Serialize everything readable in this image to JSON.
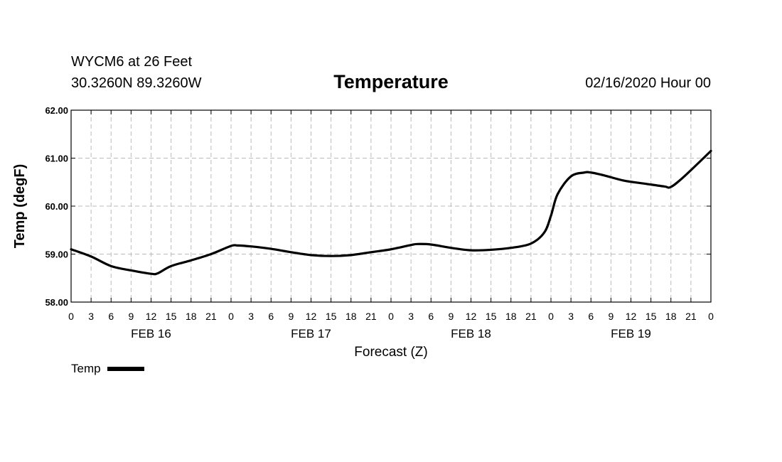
{
  "header": {
    "station": "WYCM6 at 26 Feet",
    "coords": "30.3260N 89.3260W",
    "title": "Temperature",
    "datetime": "02/16/2020 Hour 00"
  },
  "legend": {
    "label": "Temp",
    "position": "bottom-left",
    "color": "#000000"
  },
  "chart_data": {
    "type": "line",
    "title": "Temperature",
    "xlabel": "Forecast (Z)",
    "ylabel": "Temp (degF)",
    "ylim": [
      58.0,
      62.0
    ],
    "yticks": [
      "58.00",
      "59.00",
      "60.00",
      "61.00",
      "62.00"
    ],
    "xlim": [
      0,
      96
    ],
    "xticks": [
      "0",
      "3",
      "6",
      "9",
      "12",
      "15",
      "18",
      "21",
      "0",
      "3",
      "6",
      "9",
      "12",
      "15",
      "18",
      "21",
      "0",
      "3",
      "6",
      "9",
      "12",
      "15",
      "18",
      "21",
      "0",
      "3",
      "6",
      "9",
      "12",
      "15",
      "18",
      "21",
      "0"
    ],
    "day_labels": [
      {
        "label": "FEB 16",
        "x": 12
      },
      {
        "label": "FEB 17",
        "x": 36
      },
      {
        "label": "FEB 18",
        "x": 60
      },
      {
        "label": "FEB 19",
        "x": 84
      }
    ],
    "grid": true,
    "series": [
      {
        "name": "Temp",
        "color": "#000000",
        "x": [
          0,
          3,
          6,
          9,
          12,
          13,
          15,
          18,
          21,
          24,
          25,
          27,
          30,
          33,
          36,
          39,
          42,
          45,
          48,
          51,
          52,
          54,
          57,
          60,
          63,
          66,
          69,
          71,
          72,
          73,
          75,
          77,
          78,
          80,
          83,
          86,
          89,
          90,
          92,
          96
        ],
        "y": [
          59.1,
          58.95,
          58.75,
          58.66,
          58.59,
          58.6,
          58.75,
          58.87,
          59.0,
          59.17,
          59.18,
          59.16,
          59.11,
          59.04,
          58.98,
          58.96,
          58.98,
          59.04,
          59.1,
          59.19,
          59.21,
          59.2,
          59.13,
          59.08,
          59.09,
          59.13,
          59.22,
          59.45,
          59.8,
          60.25,
          60.62,
          60.7,
          60.7,
          60.64,
          60.53,
          60.47,
          60.41,
          60.4,
          60.62,
          61.15
        ]
      }
    ]
  }
}
